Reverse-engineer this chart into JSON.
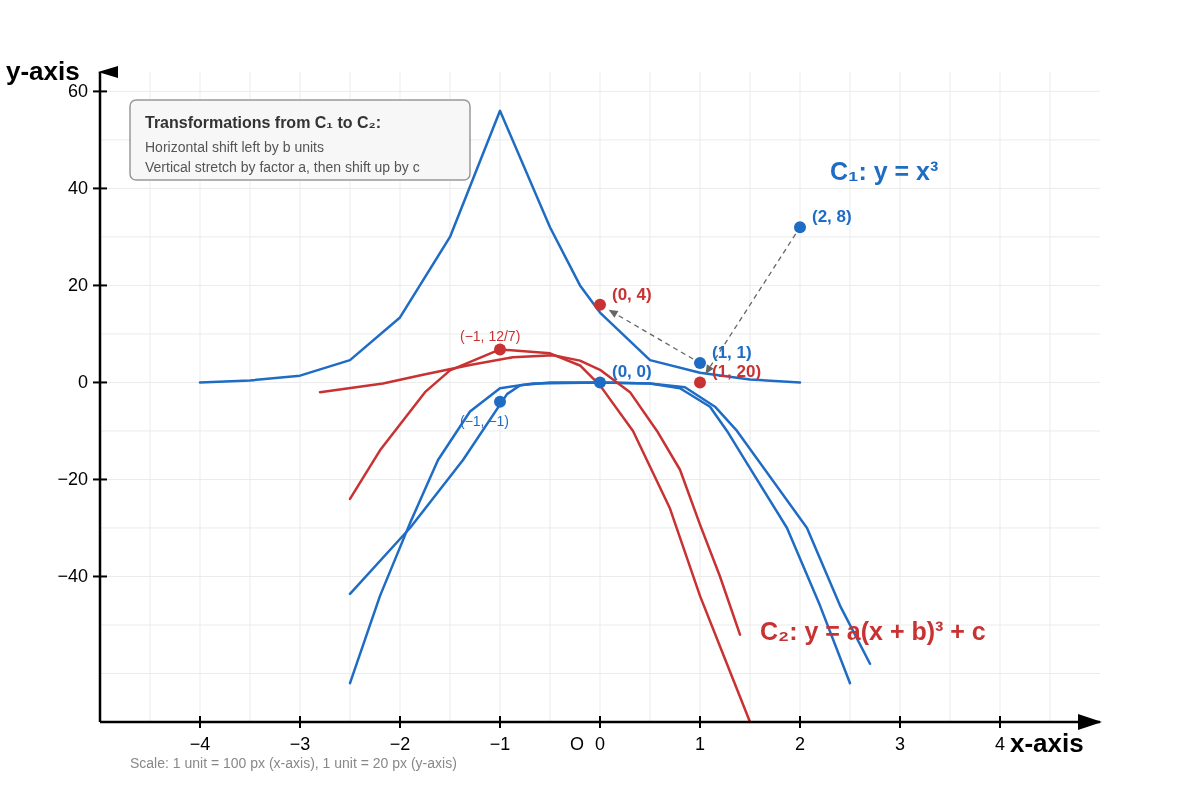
{
  "chart_data": {
    "type": "line",
    "xlabel": "x-axis",
    "ylabel": "y-axis",
    "xlim": [
      -5,
      5
    ],
    "ylim": [
      -70,
      64
    ],
    "xticks": [
      {
        "value": -4,
        "label": "−4"
      },
      {
        "value": -3,
        "label": "−3"
      },
      {
        "value": -2,
        "label": "−2"
      },
      {
        "value": -1,
        "label": "−1"
      },
      0,
      1,
      2,
      3,
      4
    ],
    "yticks": [
      {
        "value": -40,
        "label": "−40"
      },
      {
        "value": -20,
        "label": "−20"
      },
      0,
      20,
      40,
      60
    ],
    "grid": true,
    "series": [
      {
        "color": "#1f6cc4",
        "x": [
          -4,
          -3.5,
          -3,
          -2.5,
          -2,
          -1.5,
          -1,
          -0.5,
          -0.2,
          0,
          0.5,
          1,
          1.5,
          2
        ],
        "values": [
          0,
          0.4,
          1.4,
          4.6,
          13.4,
          30,
          56,
          32,
          20,
          14.4,
          4.6,
          2,
          0.6,
          0
        ]
      },
      {
        "color": "#1f6cc4",
        "x": [
          -2.5,
          -2.2,
          -1.9,
          -1.62,
          -1.3,
          -1,
          -0.67,
          0,
          0.5,
          0.8,
          1.1,
          1.27,
          1.45,
          1.87,
          2.2,
          2.5
        ],
        "values": [
          -62,
          -44,
          -29,
          -16,
          -6,
          -1.2,
          -0.2,
          0,
          -0.2,
          -1.2,
          -5,
          -10,
          -16,
          -30,
          -46,
          -62
        ]
      },
      {
        "color": "#1f6cc4",
        "x": [
          -2.5,
          -1.9,
          -1.37,
          -0.93,
          -0.8,
          -0.5,
          0,
          0.5,
          0.85,
          1.15,
          1.37,
          2.07,
          2.4,
          2.7
        ],
        "values": [
          -43.6,
          -30,
          -16,
          -2.4,
          -0.6,
          0,
          0,
          -0.2,
          -1,
          -5,
          -10,
          -30,
          -46,
          -58
        ]
      },
      {
        "color": "#c83232",
        "x": [
          -2.5,
          -2.2,
          -1.75,
          -1.5,
          -1,
          -0.5,
          -0.2,
          0,
          0.33,
          0.7,
          1,
          1.25,
          1.5
        ],
        "values": [
          -24,
          -14,
          -2,
          2.5,
          6.8,
          6,
          3.5,
          -0.6,
          -10,
          -26,
          -44,
          -57,
          -70
        ]
      },
      {
        "color": "#c83232",
        "x": [
          -2.8,
          -2.17,
          -1.77,
          -1.3,
          -0.87,
          -0.47,
          -0.2,
          0,
          0.3,
          0.57,
          0.8,
          1,
          1.2,
          1.4
        ],
        "values": [
          -2,
          -0.2,
          1.6,
          3.6,
          5.2,
          5.6,
          4.5,
          2.6,
          -2,
          -10,
          -18,
          -29.3,
          -40,
          -52
        ]
      },
      {
        "type": "scatter",
        "color": "#1f6cc4",
        "x": [
          -1,
          0,
          1,
          2
        ],
        "values": [
          -4,
          0,
          4,
          32
        ],
        "value_labels": [
          "(−1, −1)",
          "(0, 0)",
          "(1, 1)",
          "(2, 8)"
        ]
      },
      {
        "type": "scatter",
        "color": "#c83232",
        "x": [
          -1,
          0,
          1
        ],
        "values": [
          6.8,
          16,
          0
        ],
        "value_labels": [
          "(−1, 12/7)",
          "(0, 4)",
          "(1, 20)"
        ]
      }
    ],
    "annotations": [
      "Transformations from C₁ to C₂:",
      "Horizontal shift left by b units",
      "Vertical stretch by factor a, then shift up by c",
      "Scale: 1 unit = 100 px (x-axis), 1 unit = 20 px (y-axis)",
      "O",
      "C₁: y = x³",
      "C₂: y = a(x + b)³ + c"
    ]
  }
}
